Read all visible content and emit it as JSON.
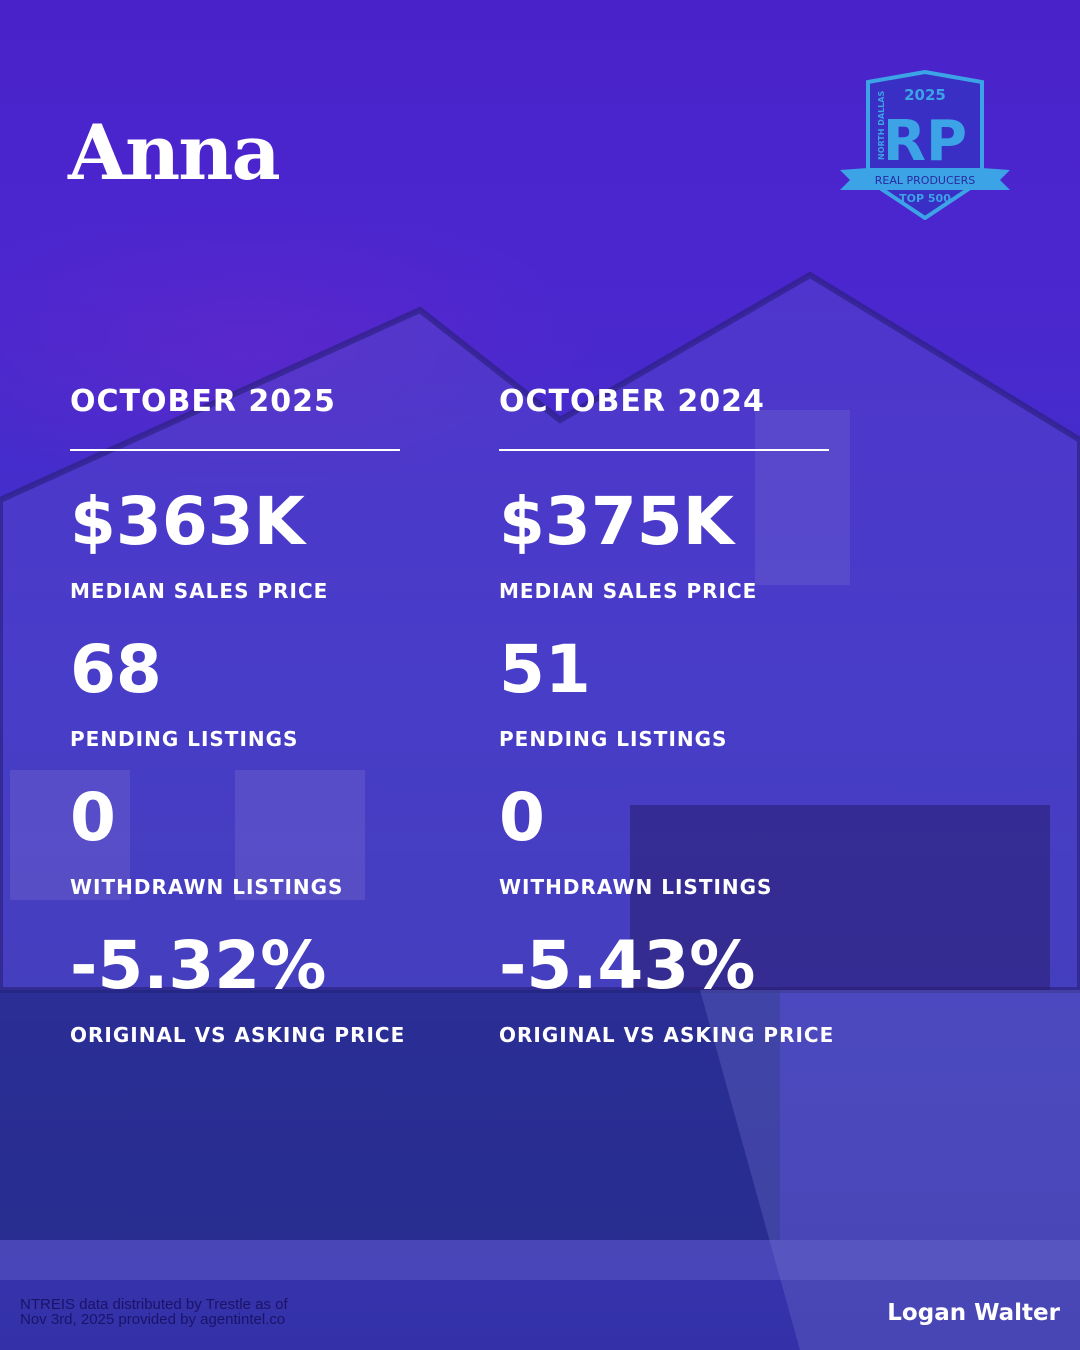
{
  "title": "Anna",
  "badge": {
    "year": "2025",
    "region": "NORTH DALLAS",
    "letters": "RP",
    "banner": "REAL PRODUCERS",
    "rank": "TOP 500"
  },
  "columns": [
    {
      "header": "OCTOBER 2025",
      "stats": [
        {
          "value": "$363K",
          "label": "MEDIAN SALES PRICE"
        },
        {
          "value": "68",
          "label": "PENDING LISTINGS"
        },
        {
          "value": "0",
          "label": "WITHDRAWN LISTINGS"
        },
        {
          "value": "-5.32%",
          "label": "ORIGINAL VS ASKING PRICE"
        }
      ]
    },
    {
      "header": "OCTOBER 2024",
      "stats": [
        {
          "value": "$375K",
          "label": "MEDIAN SALES PRICE"
        },
        {
          "value": "51",
          "label": "PENDING LISTINGS"
        },
        {
          "value": "0",
          "label": "WITHDRAWN LISTINGS"
        },
        {
          "value": "-5.43%",
          "label": "ORIGINAL VS ASKING PRICE"
        }
      ]
    }
  ],
  "footer": {
    "source_line1": "NTREIS data distributed by Trestle as of",
    "source_line2": "Nov 3rd, 2025 provided by agentintel.co",
    "agent": "Logan Walter"
  },
  "colors": {
    "background": "#4326c8",
    "badge": "#3ba3e6",
    "source_text": "#1a1468"
  }
}
